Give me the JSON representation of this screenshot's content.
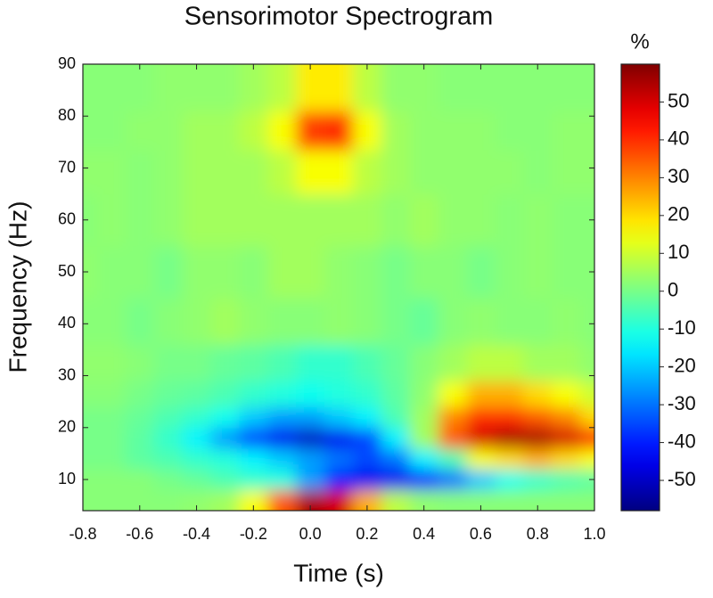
{
  "chart_data": {
    "type": "heatmap",
    "title": "Sensorimotor Spectrogram",
    "x_label": "Time (s)",
    "y_label": "Frequency (Hz)",
    "colorbar_label": "%",
    "colormap": "jet",
    "x": [
      -0.8,
      -0.7,
      -0.6,
      -0.5,
      -0.4,
      -0.3,
      -0.2,
      -0.1,
      0.0,
      0.1,
      0.2,
      0.3,
      0.4,
      0.5,
      0.6,
      0.7,
      0.8,
      0.9,
      1.0
    ],
    "y": [
      6,
      10,
      14,
      18,
      22,
      26,
      32,
      40,
      50,
      60,
      70,
      77,
      85
    ],
    "z": [
      [
        2,
        2,
        2,
        2,
        3,
        5,
        15,
        35,
        55,
        50,
        25,
        8,
        3,
        2,
        2,
        2,
        2,
        2,
        2
      ],
      [
        2,
        2,
        2,
        0,
        -2,
        -5,
        -8,
        -10,
        -25,
        -40,
        -45,
        -45,
        -40,
        -30,
        -20,
        -12,
        -8,
        -5,
        -3
      ],
      [
        0,
        0,
        -3,
        -5,
        -8,
        -10,
        -15,
        -20,
        -25,
        -30,
        -35,
        -30,
        -15,
        -5,
        15,
        20,
        25,
        20,
        15
      ],
      [
        0,
        0,
        -3,
        -8,
        -15,
        -25,
        -35,
        -45,
        -50,
        -45,
        -35,
        -15,
        5,
        35,
        50,
        55,
        55,
        50,
        40
      ],
      [
        0,
        0,
        -2,
        -5,
        -8,
        -12,
        -20,
        -25,
        -25,
        -20,
        -15,
        -5,
        5,
        30,
        40,
        40,
        35,
        30,
        20
      ],
      [
        2,
        2,
        0,
        -2,
        -3,
        -5,
        -8,
        -10,
        -12,
        -10,
        -8,
        -3,
        3,
        15,
        25,
        25,
        20,
        15,
        10
      ],
      [
        3,
        3,
        2,
        0,
        0,
        -2,
        -3,
        -5,
        -8,
        -8,
        -5,
        -2,
        2,
        5,
        8,
        8,
        5,
        5,
        3
      ],
      [
        2,
        2,
        0,
        2,
        3,
        5,
        3,
        2,
        2,
        3,
        2,
        0,
        -2,
        2,
        3,
        2,
        2,
        3,
        2
      ],
      [
        3,
        2,
        2,
        0,
        3,
        3,
        2,
        5,
        5,
        3,
        2,
        0,
        2,
        2,
        0,
        2,
        3,
        2,
        2
      ],
      [
        2,
        3,
        2,
        3,
        5,
        5,
        5,
        5,
        5,
        5,
        5,
        3,
        5,
        3,
        3,
        2,
        3,
        2,
        2
      ],
      [
        3,
        3,
        2,
        3,
        5,
        5,
        5,
        8,
        15,
        15,
        8,
        5,
        3,
        3,
        3,
        3,
        2,
        3,
        3
      ],
      [
        2,
        2,
        3,
        3,
        5,
        5,
        8,
        15,
        38,
        40,
        15,
        5,
        3,
        3,
        3,
        2,
        2,
        3,
        3
      ],
      [
        2,
        2,
        2,
        3,
        3,
        3,
        5,
        8,
        18,
        18,
        8,
        3,
        3,
        2,
        2,
        2,
        2,
        2,
        2
      ]
    ],
    "xlim": [
      -0.8,
      1.0
    ],
    "xticks": [
      -0.8,
      -0.6,
      -0.4,
      -0.2,
      {
        "value": 0,
        "label": "0.0"
      },
      0.2,
      0.4,
      0.6,
      0.8,
      {
        "value": 1,
        "label": "1.0"
      }
    ],
    "ylim": [
      4,
      90
    ],
    "yticks": [
      10,
      20,
      30,
      40,
      50,
      60,
      70,
      80,
      90
    ],
    "clim": [
      -58,
      60
    ],
    "cticks": [
      50,
      40,
      30,
      20,
      10,
      0,
      -10,
      -20,
      -30,
      -40,
      -50
    ]
  }
}
